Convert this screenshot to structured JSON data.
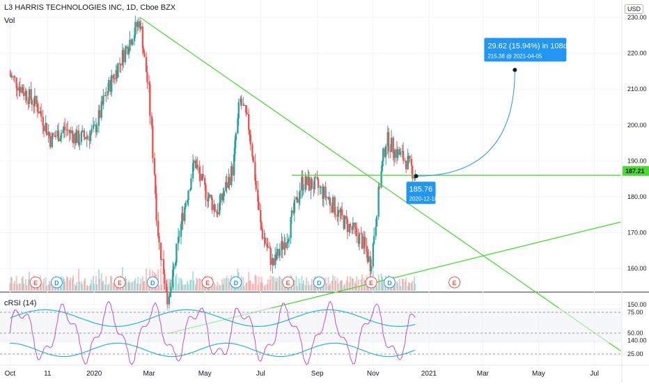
{
  "header": {
    "title": "L3 HARRIS TECHNOLOGIES INC, 1D, Cboe BZX",
    "volume_label": "Vol",
    "currency": "USD"
  },
  "indicator": {
    "label": "cRSI (14)"
  },
  "colors": {
    "up": "#26a69a",
    "down": "#ef5350",
    "trend": "#4cda35",
    "callout": "#2196f3",
    "crsi_line": "#b94fd6",
    "crsi_band": "#26b6c9"
  },
  "chart_data": {
    "type": "candlestick",
    "price_axis": {
      "ticks": [
        140,
        150,
        160,
        170,
        180,
        190,
        200,
        210,
        220,
        230
      ]
    },
    "time_axis": {
      "ticks": [
        "Oct",
        "11",
        "2020",
        "Mar",
        "May",
        "Jul",
        "Sep",
        "Nov",
        "2021",
        "Mar",
        "May",
        "Jul"
      ]
    },
    "indicator_axis": {
      "ticks": [
        25,
        50,
        75
      ]
    },
    "last_price": "187.21",
    "earnings_markers": [
      {
        "label": "E",
        "date": "2019-10-29"
      },
      {
        "label": "D",
        "date": "2019-11-21"
      },
      {
        "label": "E",
        "date": "2020-01-29"
      },
      {
        "label": "D",
        "date": "2020-03-05"
      },
      {
        "label": "E",
        "date": "2020-05-04"
      },
      {
        "label": "D",
        "date": "2020-06-04"
      },
      {
        "label": "E",
        "date": "2020-07-31"
      },
      {
        "label": "D",
        "date": "2020-09-03"
      },
      {
        "label": "E",
        "date": "2020-10-30"
      },
      {
        "label": "D",
        "date": "2020-11-19"
      },
      {
        "label": "E",
        "date": "2021-01-29"
      }
    ],
    "projection": {
      "start_price": "185.76",
      "start_date": "2020-12-18",
      "target_price": "215.38",
      "target_date": "2021-04-05",
      "change_label": "29.62 (15.94%) in 108d"
    },
    "trendlines": [
      {
        "from": [
          "2020-02-20",
          230
        ],
        "to": [
          "2021-07-30",
          137
        ]
      },
      {
        "from": [
          "2020-03-23",
          142
        ],
        "to": [
          "2021-07-30",
          173
        ]
      },
      {
        "from": [
          "2020-08-04",
          186
        ],
        "to": [
          "2021-07-30",
          186
        ]
      }
    ],
    "prices": [
      {
        "date": "2019-10-01",
        "close": 214
      },
      {
        "date": "2019-10-15",
        "close": 210
      },
      {
        "date": "2019-11-01",
        "close": 205
      },
      {
        "date": "2019-11-15",
        "close": 196
      },
      {
        "date": "2019-12-01",
        "close": 199
      },
      {
        "date": "2019-12-15",
        "close": 196
      },
      {
        "date": "2020-01-01",
        "close": 198
      },
      {
        "date": "2020-01-15",
        "close": 209
      },
      {
        "date": "2020-02-01",
        "close": 219
      },
      {
        "date": "2020-02-20",
        "close": 229
      },
      {
        "date": "2020-03-01",
        "close": 210
      },
      {
        "date": "2020-03-12",
        "close": 168
      },
      {
        "date": "2020-03-23",
        "close": 150
      },
      {
        "date": "2020-04-05",
        "close": 172
      },
      {
        "date": "2020-04-20",
        "close": 190
      },
      {
        "date": "2020-05-01",
        "close": 182
      },
      {
        "date": "2020-05-15",
        "close": 176
      },
      {
        "date": "2020-06-01",
        "close": 188
      },
      {
        "date": "2020-06-09",
        "close": 207
      },
      {
        "date": "2020-06-20",
        "close": 198
      },
      {
        "date": "2020-07-01",
        "close": 172
      },
      {
        "date": "2020-07-15",
        "close": 161
      },
      {
        "date": "2020-08-01",
        "close": 170
      },
      {
        "date": "2020-08-15",
        "close": 184
      },
      {
        "date": "2020-09-01",
        "close": 183
      },
      {
        "date": "2020-09-15",
        "close": 179
      },
      {
        "date": "2020-10-01",
        "close": 173
      },
      {
        "date": "2020-10-20",
        "close": 168
      },
      {
        "date": "2020-10-30",
        "close": 161
      },
      {
        "date": "2020-11-09",
        "close": 185
      },
      {
        "date": "2020-11-16",
        "close": 196
      },
      {
        "date": "2020-11-25",
        "close": 193
      },
      {
        "date": "2020-12-08",
        "close": 190
      },
      {
        "date": "2020-12-18",
        "close": 186
      }
    ]
  }
}
